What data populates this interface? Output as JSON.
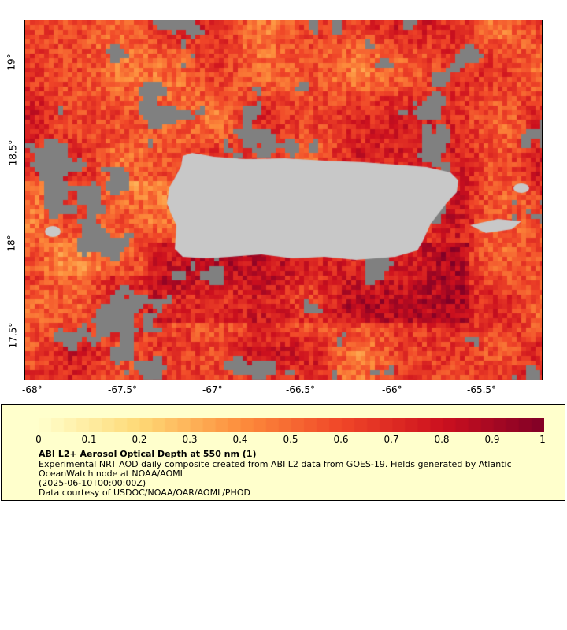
{
  "map": {
    "lon_labels": [
      "-68°",
      "-67.5°",
      "-67°",
      "-66.5°",
      "-66°",
      "-65.5°"
    ],
    "lat_labels": [
      "19°",
      "18.5°",
      "18°",
      "17.5°"
    ],
    "land_color": "#c8c8c8",
    "nodata_color": "#808080"
  },
  "legend": {
    "ticks": [
      "0",
      "0.1",
      "0.2",
      "0.3",
      "0.4",
      "0.5",
      "0.6",
      "0.7",
      "0.8",
      "0.9",
      "1"
    ],
    "title": "ABI L2+ Aerosol Optical Depth at 550 nm (1)",
    "desc_line1": "Experimental NRT AOD daily composite created from ABI L2 data from GOES-19. Fields generated by Atlantic",
    "desc_line2": "OceanWatch node at NOAA/AOML",
    "date": "(2025-06-10T00:00:00Z)",
    "credit": "Data courtesy of USDOC/NOAA/OAR/AOML/PHOD"
  }
}
